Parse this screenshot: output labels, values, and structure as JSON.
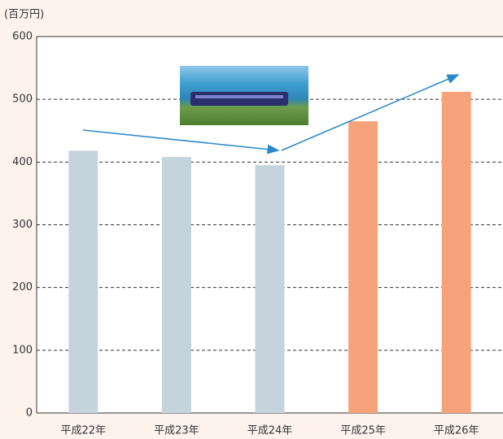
{
  "chart_data": {
    "type": "bar",
    "y_label": "(百万円)",
    "categories": [
      "平成22年",
      "平成23年",
      "平成24年",
      "平成25年",
      "平成26年"
    ],
    "values": [
      418,
      408,
      395,
      465,
      512
    ],
    "colors": [
      "#c5d3dc",
      "#c5d3dc",
      "#c5d3dc",
      "#f6a37b",
      "#f6a37b"
    ],
    "ylim": [
      0,
      600
    ],
    "yticks": [
      0,
      100,
      200,
      300,
      400,
      500,
      600
    ],
    "grid": true
  }
}
